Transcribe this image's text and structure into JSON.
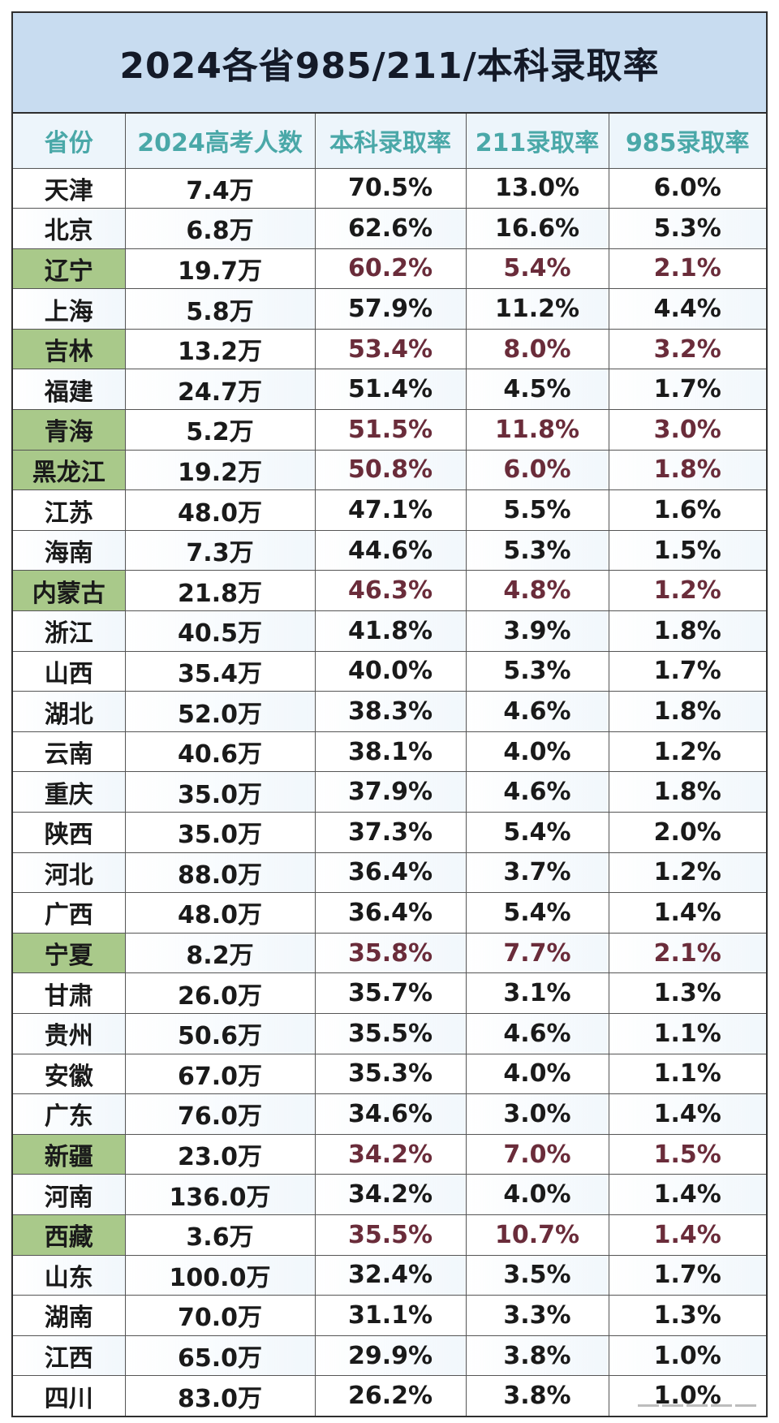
{
  "title": "2024各省985/211/本科录取率",
  "headers": [
    "省份",
    "2024高考人数",
    "本科录取率",
    "211录取率",
    "985录取率"
  ],
  "rows": [
    {
      "province": "天津",
      "count": "7.4万",
      "bk": "70.5%",
      "r211": "13.0%",
      "r985": "6.0%",
      "hl": false
    },
    {
      "province": "北京",
      "count": "6.8万",
      "bk": "62.6%",
      "r211": "16.6%",
      "r985": "5.3%",
      "hl": false
    },
    {
      "province": "辽宁",
      "count": "19.7万",
      "bk": "60.2%",
      "r211": "5.4%",
      "r985": "2.1%",
      "hl": true
    },
    {
      "province": "上海",
      "count": "5.8万",
      "bk": "57.9%",
      "r211": "11.2%",
      "r985": "4.4%",
      "hl": false
    },
    {
      "province": "吉林",
      "count": "13.2万",
      "bk": "53.4%",
      "r211": "8.0%",
      "r985": "3.2%",
      "hl": true
    },
    {
      "province": "福建",
      "count": "24.7万",
      "bk": "51.4%",
      "r211": "4.5%",
      "r985": "1.7%",
      "hl": false
    },
    {
      "province": "青海",
      "count": "5.2万",
      "bk": "51.5%",
      "r211": "11.8%",
      "r985": "3.0%",
      "hl": true
    },
    {
      "province": "黑龙江",
      "count": "19.2万",
      "bk": "50.8%",
      "r211": "6.0%",
      "r985": "1.8%",
      "hl": true
    },
    {
      "province": "江苏",
      "count": "48.0万",
      "bk": "47.1%",
      "r211": "5.5%",
      "r985": "1.6%",
      "hl": false
    },
    {
      "province": "海南",
      "count": "7.3万",
      "bk": "44.6%",
      "r211": "5.3%",
      "r985": "1.5%",
      "hl": false
    },
    {
      "province": "内蒙古",
      "count": "21.8万",
      "bk": "46.3%",
      "r211": "4.8%",
      "r985": "1.2%",
      "hl": true
    },
    {
      "province": "浙江",
      "count": "40.5万",
      "bk": "41.8%",
      "r211": "3.9%",
      "r985": "1.8%",
      "hl": false
    },
    {
      "province": "山西",
      "count": "35.4万",
      "bk": "40.0%",
      "r211": "5.3%",
      "r985": "1.7%",
      "hl": false
    },
    {
      "province": "湖北",
      "count": "52.0万",
      "bk": "38.3%",
      "r211": "4.6%",
      "r985": "1.8%",
      "hl": false
    },
    {
      "province": "云南",
      "count": "40.6万",
      "bk": "38.1%",
      "r211": "4.0%",
      "r985": "1.2%",
      "hl": false
    },
    {
      "province": "重庆",
      "count": "35.0万",
      "bk": "37.9%",
      "r211": "4.6%",
      "r985": "1.8%",
      "hl": false
    },
    {
      "province": "陕西",
      "count": "35.0万",
      "bk": "37.3%",
      "r211": "5.4%",
      "r985": "2.0%",
      "hl": false
    },
    {
      "province": "河北",
      "count": "88.0万",
      "bk": "36.4%",
      "r211": "3.7%",
      "r985": "1.2%",
      "hl": false
    },
    {
      "province": "广西",
      "count": "48.0万",
      "bk": "36.4%",
      "r211": "5.4%",
      "r985": "1.4%",
      "hl": false
    },
    {
      "province": "宁夏",
      "count": "8.2万",
      "bk": "35.8%",
      "r211": "7.7%",
      "r985": "2.1%",
      "hl": true
    },
    {
      "province": "甘肃",
      "count": "26.0万",
      "bk": "35.7%",
      "r211": "3.1%",
      "r985": "1.3%",
      "hl": false
    },
    {
      "province": "贵州",
      "count": "50.6万",
      "bk": "35.5%",
      "r211": "4.6%",
      "r985": "1.1%",
      "hl": false
    },
    {
      "province": "安徽",
      "count": "67.0万",
      "bk": "35.3%",
      "r211": "4.0%",
      "r985": "1.1%",
      "hl": false
    },
    {
      "province": "广东",
      "count": "76.0万",
      "bk": "34.6%",
      "r211": "3.0%",
      "r985": "1.4%",
      "hl": false
    },
    {
      "province": "新疆",
      "count": "23.0万",
      "bk": "34.2%",
      "r211": "7.0%",
      "r985": "1.5%",
      "hl": true
    },
    {
      "province": "河南",
      "count": "136.0万",
      "bk": "34.2%",
      "r211": "4.0%",
      "r985": "1.4%",
      "hl": false
    },
    {
      "province": "西藏",
      "count": "3.6万",
      "bk": "35.5%",
      "r211": "10.7%",
      "r985": "1.4%",
      "hl": true
    },
    {
      "province": "山东",
      "count": "100.0万",
      "bk": "32.4%",
      "r211": "3.5%",
      "r985": "1.7%",
      "hl": false
    },
    {
      "province": "湖南",
      "count": "70.0万",
      "bk": "31.1%",
      "r211": "3.3%",
      "r985": "1.3%",
      "hl": false
    },
    {
      "province": "江西",
      "count": "65.0万",
      "bk": "29.9%",
      "r211": "3.8%",
      "r985": "1.0%",
      "hl": false
    },
    {
      "province": "四川",
      "count": "83.0万",
      "bk": "26.2%",
      "r211": "3.8%",
      "r985": "1.0%",
      "hl": false
    }
  ],
  "colors": {
    "title_bg": "#c8dcf0",
    "header_text": "#4aa8a8",
    "highlight_cell": "#a9c98a",
    "highlight_text": "#6a2c3a"
  }
}
